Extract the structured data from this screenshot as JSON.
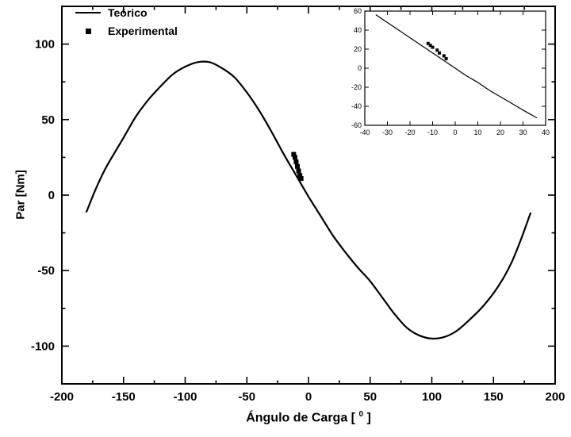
{
  "figure": {
    "background": "#ffffff",
    "line_color": "#000000"
  },
  "legend": {
    "items": [
      {
        "label": "Teórico",
        "marker": "line"
      },
      {
        "label": "Experimental",
        "marker": "square"
      }
    ]
  },
  "chart_data": {
    "type": "line+scatter",
    "title": "",
    "ylabel": "Par [Nm]",
    "xlabel_parts": {
      "pre": "Ángulo de Carga [ ",
      "sup": "0",
      "post": " ]"
    },
    "xlim": [
      -200,
      200
    ],
    "ylim": [
      -125,
      125
    ],
    "xticks": [
      -200,
      -150,
      -100,
      -50,
      0,
      50,
      100,
      150,
      200
    ],
    "yticks": [
      -100,
      -50,
      0,
      50,
      100
    ],
    "x_minor_step": 25,
    "y_minor_step": 25,
    "series": [
      {
        "name": "Teórico",
        "type": "line",
        "points": [
          [
            -180,
            -11
          ],
          [
            -172,
            5
          ],
          [
            -165,
            17
          ],
          [
            -158,
            27
          ],
          [
            -150,
            38
          ],
          [
            -140,
            52
          ],
          [
            -130,
            63
          ],
          [
            -120,
            72
          ],
          [
            -110,
            80
          ],
          [
            -100,
            85
          ],
          [
            -90,
            88
          ],
          [
            -80,
            88
          ],
          [
            -70,
            84
          ],
          [
            -60,
            78
          ],
          [
            -50,
            68
          ],
          [
            -40,
            56
          ],
          [
            -30,
            42
          ],
          [
            -20,
            27
          ],
          [
            -10,
            13
          ],
          [
            0,
            -1
          ],
          [
            10,
            -14
          ],
          [
            20,
            -27
          ],
          [
            30,
            -38
          ],
          [
            40,
            -48
          ],
          [
            50,
            -57
          ],
          [
            60,
            -68
          ],
          [
            70,
            -79
          ],
          [
            80,
            -88
          ],
          [
            90,
            -93
          ],
          [
            100,
            -95
          ],
          [
            110,
            -94
          ],
          [
            120,
            -90
          ],
          [
            130,
            -83
          ],
          [
            140,
            -75
          ],
          [
            150,
            -65
          ],
          [
            158,
            -55
          ],
          [
            165,
            -44
          ],
          [
            172,
            -30
          ],
          [
            180,
            -12
          ]
        ]
      },
      {
        "name": "Experimental",
        "type": "scatter",
        "points": [
          [
            -12,
            27
          ],
          [
            -11,
            25
          ],
          [
            -10,
            22
          ],
          [
            -9,
            19
          ],
          [
            -8,
            16
          ],
          [
            -7,
            13
          ],
          [
            -6,
            11
          ]
        ]
      }
    ],
    "inset": {
      "xlim": [
        -40,
        40
      ],
      "ylim": [
        -60,
        60
      ],
      "xticks": [
        -40,
        -30,
        -20,
        -10,
        0,
        10,
        20,
        30,
        40
      ],
      "yticks": [
        -60,
        -40,
        -20,
        0,
        20,
        40,
        60
      ],
      "series": [
        {
          "name": "Teórico",
          "type": "line",
          "points": [
            [
              -35,
              56
            ],
            [
              -30,
              48
            ],
            [
              -25,
              40
            ],
            [
              -20,
              32
            ],
            [
              -15,
              24
            ],
            [
              -10,
              16
            ],
            [
              -5,
              8
            ],
            [
              0,
              0
            ],
            [
              5,
              -8
            ],
            [
              10,
              -15
            ],
            [
              15,
              -23
            ],
            [
              20,
              -30
            ],
            [
              25,
              -37
            ],
            [
              30,
              -44
            ],
            [
              36,
              -52
            ]
          ]
        },
        {
          "name": "Experimental",
          "type": "scatter",
          "points": [
            [
              -12,
              26
            ],
            [
              -11,
              24
            ],
            [
              -10,
              22
            ],
            [
              -8,
              19
            ],
            [
              -7,
              16
            ],
            [
              -5,
              13
            ],
            [
              -4,
              10
            ]
          ]
        }
      ]
    }
  }
}
